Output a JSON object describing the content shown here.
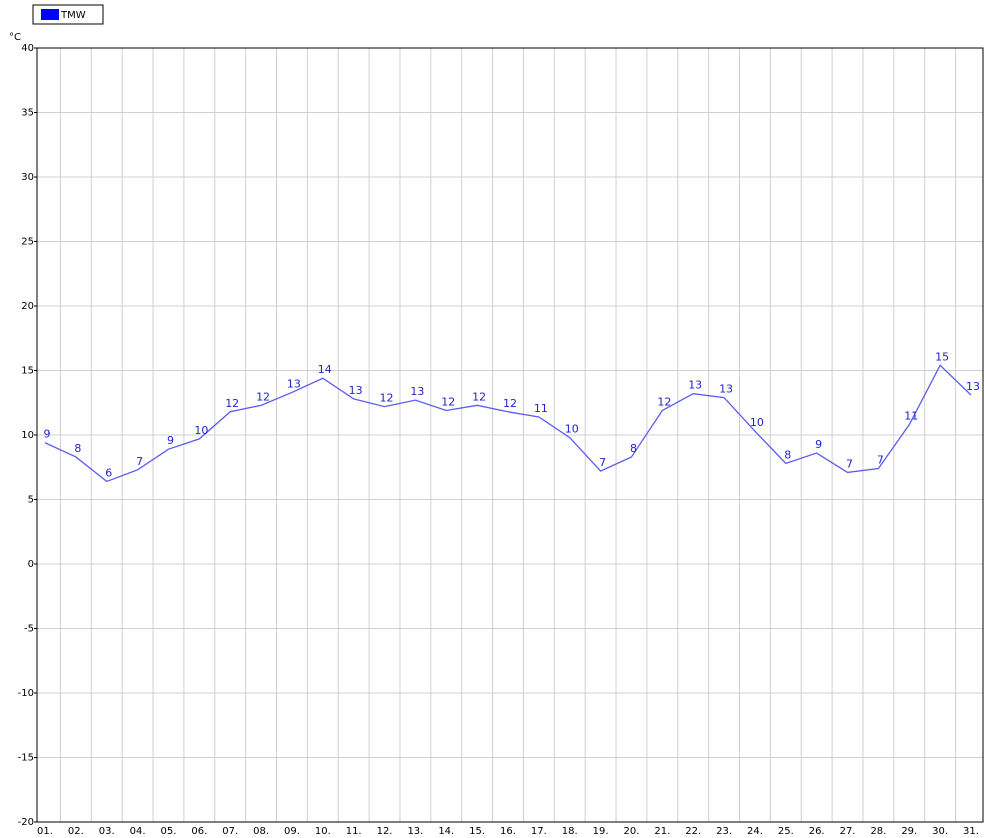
{
  "chart_data": {
    "type": "line",
    "y_label": "°C",
    "categories": [
      "01.",
      "02.",
      "03.",
      "04.",
      "05.",
      "06.",
      "07.",
      "08.",
      "09.",
      "10.",
      "11.",
      "12.",
      "13.",
      "14.",
      "15.",
      "16.",
      "17.",
      "18.",
      "19.",
      "20.",
      "21.",
      "22.",
      "23.",
      "24.",
      "25.",
      "26.",
      "27.",
      "28.",
      "29.",
      "30.",
      "31."
    ],
    "series": [
      {
        "name": "TMW",
        "color": "#5b5bf0",
        "legend_color": "#0000ff",
        "values": [
          9.4,
          8.3,
          6.4,
          7.3,
          8.9,
          9.7,
          11.8,
          12.3,
          13.3,
          14.4,
          12.8,
          12.2,
          12.7,
          11.9,
          12.3,
          11.8,
          11.4,
          9.8,
          7.2,
          8.3,
          11.9,
          13.2,
          12.9,
          10.3,
          7.8,
          8.6,
          7.1,
          7.4,
          10.8,
          15.4,
          13.1
        ],
        "value_labels": [
          "9",
          "8",
          "6",
          "7",
          "9",
          "10",
          "12",
          "12",
          "13",
          "14",
          "13",
          "12",
          "13",
          "12",
          "12",
          "12",
          "11",
          "10",
          "7",
          "8",
          "12",
          "13",
          "13",
          "10",
          "8",
          "9",
          "7",
          "7",
          "11",
          "15",
          "13"
        ]
      }
    ],
    "ylim": [
      -20,
      40
    ],
    "yticks": [
      -20,
      -15,
      -10,
      -5,
      0,
      5,
      10,
      15,
      20,
      25,
      30,
      35,
      40
    ],
    "grid": true
  }
}
